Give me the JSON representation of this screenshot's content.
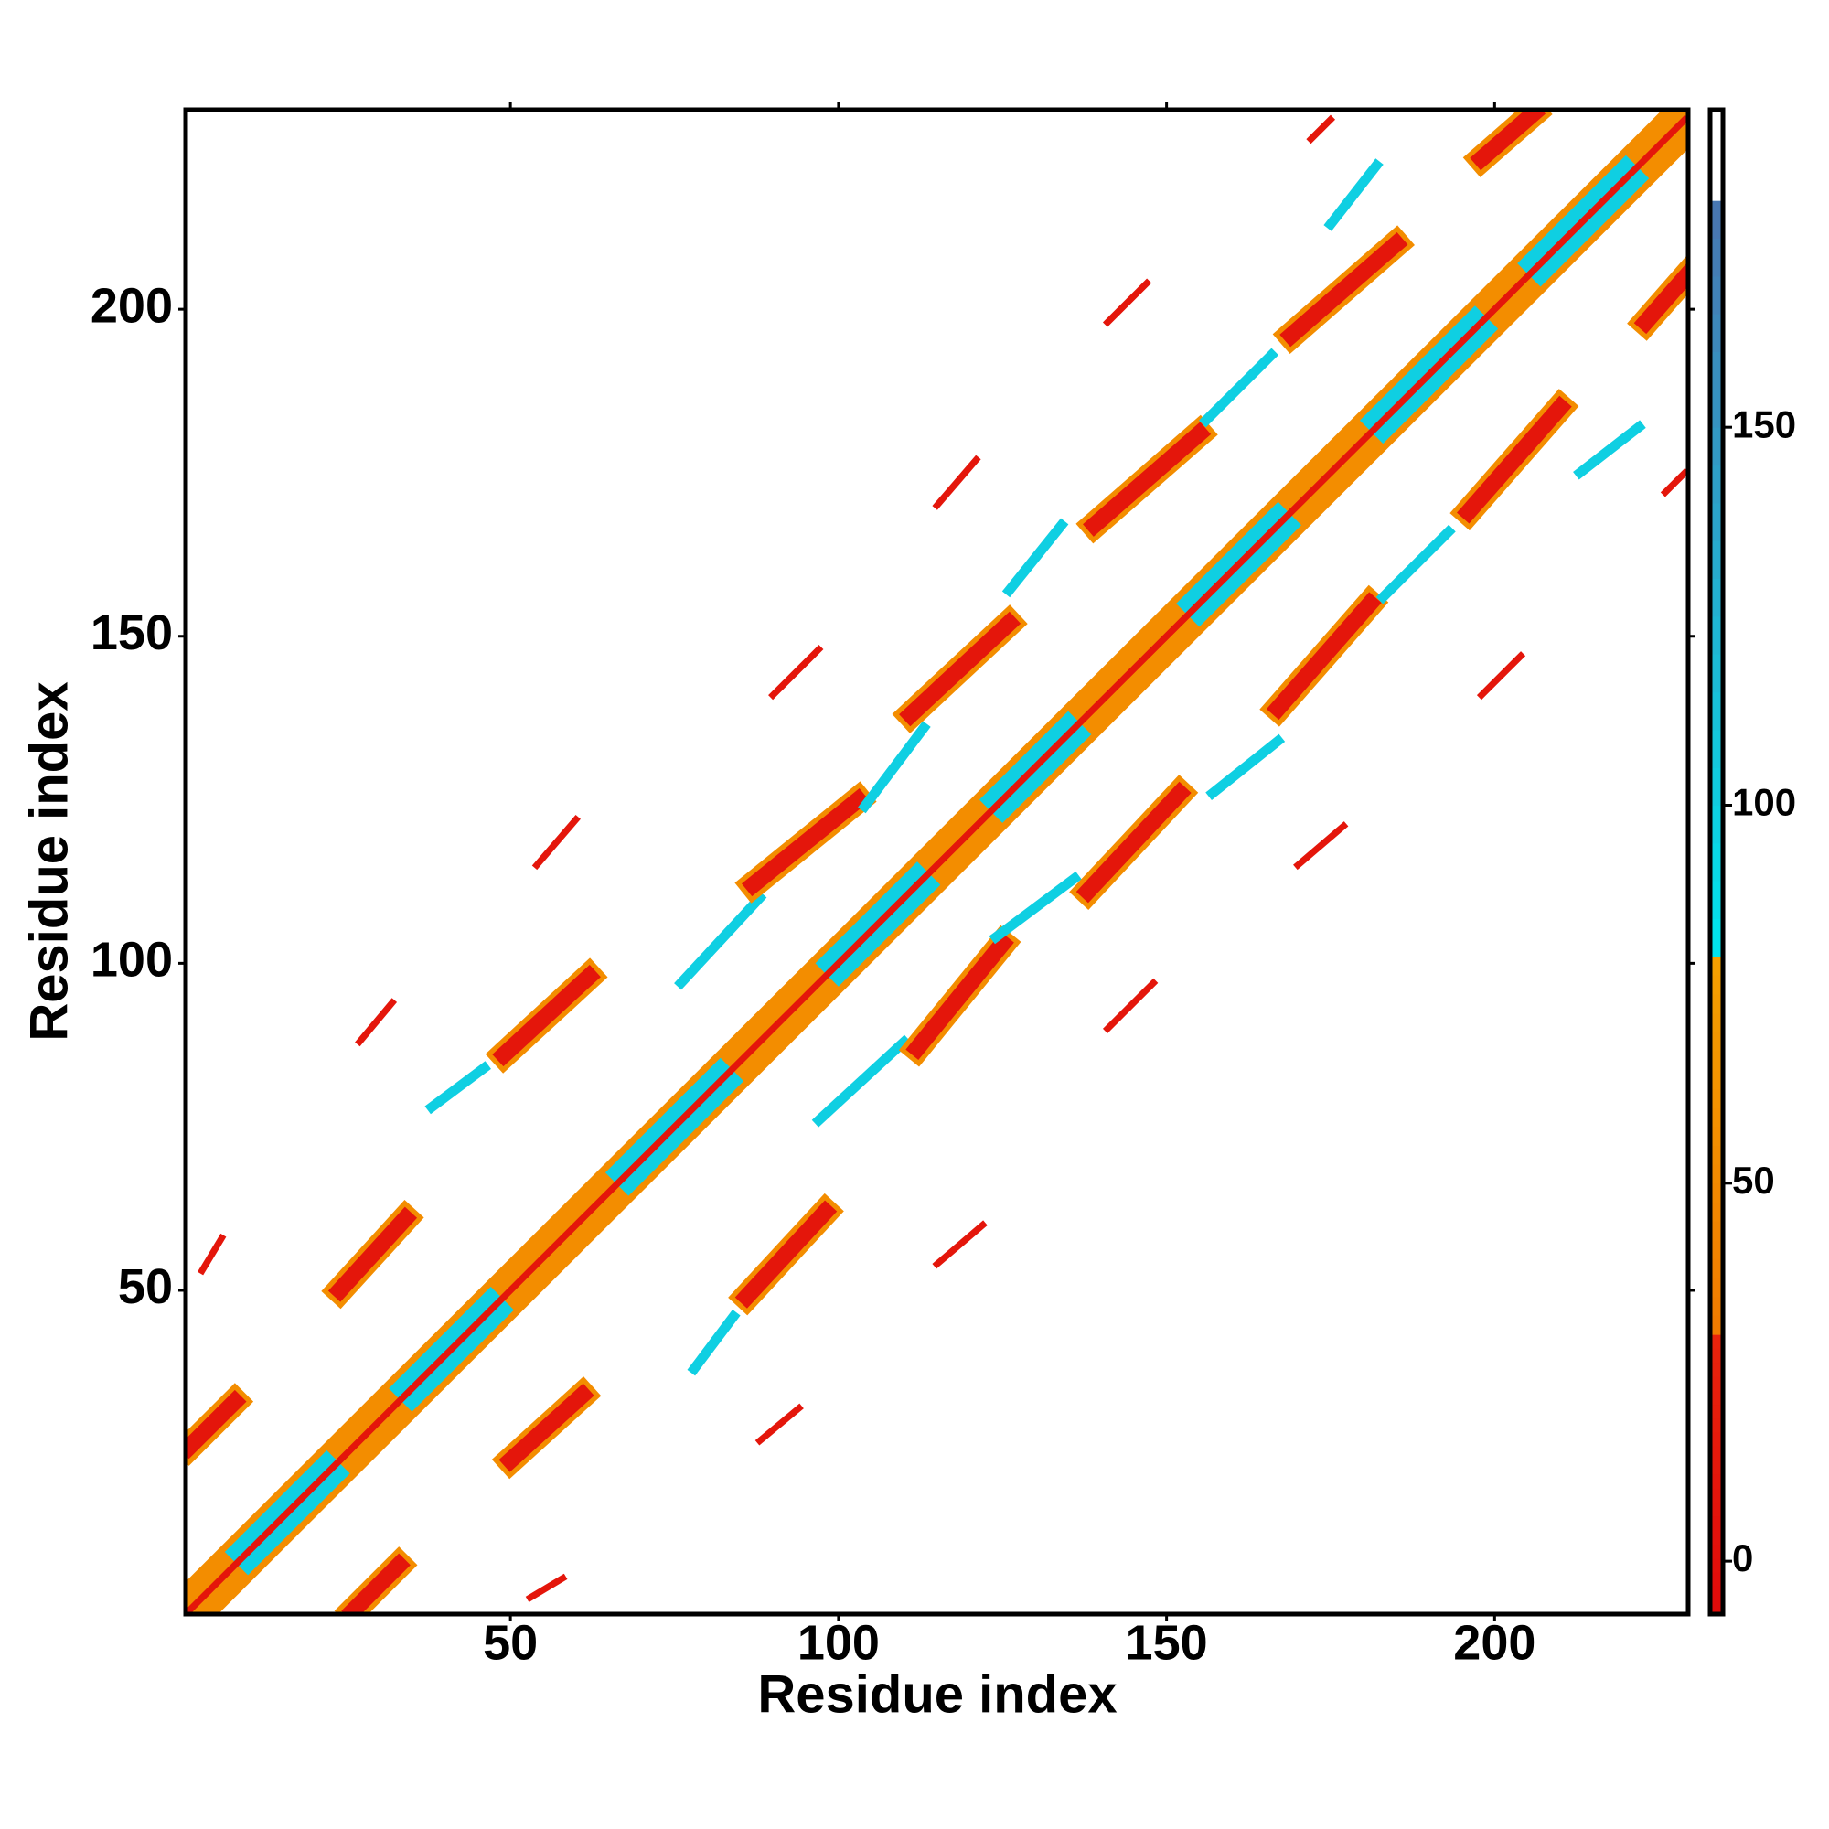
{
  "chart_data": {
    "type": "heatmap",
    "symmetric": true,
    "xlabel": "Residue index",
    "ylabel": "Residue index",
    "xlim": [
      0.5,
      229.5
    ],
    "ylim": [
      0.5,
      230.5
    ],
    "xticks": [
      50,
      100,
      150,
      200
    ],
    "yticks": [
      50,
      100,
      150,
      200
    ],
    "colorbar": {
      "lim": [
        -7,
        192
      ],
      "ticks": [
        0,
        50,
        100,
        150
      ],
      "bands": [
        {
          "from": -7,
          "to": 30,
          "colors": [
            "#e00a0a",
            "#e8240c"
          ]
        },
        {
          "from": 30,
          "to": 80,
          "colors": [
            "#f07a00",
            "#f5a000"
          ]
        },
        {
          "from": 80,
          "to": 180,
          "colors": [
            "#00e6ee",
            "#4a74b0"
          ]
        },
        {
          "from": 180,
          "to": 192,
          "colors": [
            "#ffffff",
            "#ffffff"
          ]
        }
      ]
    },
    "streaks": [
      {
        "x": [
          1,
          229
        ],
        "y": [
          1,
          229
        ],
        "w": 7,
        "value": 55
      },
      {
        "x": [
          10,
          22
        ],
        "y": [
          10,
          22
        ],
        "w": 5,
        "value": 100
      },
      {
        "x": [
          35,
          47
        ],
        "y": [
          35,
          47
        ],
        "w": 5,
        "value": 100
      },
      {
        "x": [
          68,
          82
        ],
        "y": [
          68,
          82
        ],
        "w": 5,
        "value": 100
      },
      {
        "x": [
          100,
          112
        ],
        "y": [
          100,
          112
        ],
        "w": 5,
        "value": 100
      },
      {
        "x": [
          125,
          135
        ],
        "y": [
          125,
          135
        ],
        "w": 5,
        "value": 100
      },
      {
        "x": [
          155,
          167
        ],
        "y": [
          155,
          167
        ],
        "w": 5,
        "value": 100
      },
      {
        "x": [
          183,
          197
        ],
        "y": [
          183,
          197
        ],
        "w": 5,
        "value": 100
      },
      {
        "x": [
          207,
          220
        ],
        "y": [
          207,
          220
        ],
        "w": 5,
        "value": 100
      },
      {
        "x": [
          1,
          229
        ],
        "y": [
          1,
          229
        ],
        "w": 1,
        "value": 10
      },
      {
        "x": [
          1,
          8
        ],
        "y": [
          26,
          33
        ],
        "w": 4,
        "value": 55
      },
      {
        "x": [
          1,
          8
        ],
        "y": [
          26,
          33
        ],
        "w": 2.5,
        "value": 10
      },
      {
        "x": [
          3,
          6
        ],
        "y": [
          53,
          58
        ],
        "w": 1,
        "value": 10
      },
      {
        "x": [
          24,
          34
        ],
        "y": [
          50,
          61
        ],
        "w": 4,
        "value": 55
      },
      {
        "x": [
          24,
          34
        ],
        "y": [
          50,
          61
        ],
        "w": 2.5,
        "value": 10
      },
      {
        "x": [
          27,
          32
        ],
        "y": [
          88,
          94
        ],
        "w": 1,
        "value": 10
      },
      {
        "x": [
          38,
          46
        ],
        "y": [
          78,
          84
        ],
        "w": 1.5,
        "value": 100
      },
      {
        "x": [
          49,
          62
        ],
        "y": [
          86,
          98
        ],
        "w": 4,
        "value": 55
      },
      {
        "x": [
          49,
          62
        ],
        "y": [
          86,
          98
        ],
        "w": 2.5,
        "value": 10
      },
      {
        "x": [
          54,
          60
        ],
        "y": [
          115,
          122
        ],
        "w": 1,
        "value": 10
      },
      {
        "x": [
          76,
          88
        ],
        "y": [
          97,
          110
        ],
        "w": 1.5,
        "value": 100
      },
      {
        "x": [
          87,
          103
        ],
        "y": [
          112,
          125
        ],
        "w": 4,
        "value": 55
      },
      {
        "x": [
          87,
          103
        ],
        "y": [
          112,
          125
        ],
        "w": 2.5,
        "value": 10
      },
      {
        "x": [
          90,
          97
        ],
        "y": [
          141,
          148
        ],
        "w": 1,
        "value": 10
      },
      {
        "x": [
          104,
          113
        ],
        "y": [
          124,
          136
        ],
        "w": 1.5,
        "value": 100
      },
      {
        "x": [
          111,
          126
        ],
        "y": [
          138,
          152
        ],
        "w": 4,
        "value": 55
      },
      {
        "x": [
          111,
          126
        ],
        "y": [
          138,
          152
        ],
        "w": 2.5,
        "value": 10
      },
      {
        "x": [
          115,
          121
        ],
        "y": [
          170,
          177
        ],
        "w": 1,
        "value": 10
      },
      {
        "x": [
          126,
          134
        ],
        "y": [
          157,
          167
        ],
        "w": 1.5,
        "value": 100
      },
      {
        "x": [
          139,
          155
        ],
        "y": [
          167,
          181
        ],
        "w": 4,
        "value": 55
      },
      {
        "x": [
          139,
          155
        ],
        "y": [
          167,
          181
        ],
        "w": 2.5,
        "value": 10
      },
      {
        "x": [
          141,
          147
        ],
        "y": [
          198,
          204
        ],
        "w": 1,
        "value": 10
      },
      {
        "x": [
          156,
          166
        ],
        "y": [
          183,
          193
        ],
        "w": 1.5,
        "value": 100
      },
      {
        "x": [
          169,
          185
        ],
        "y": [
          196,
          210
        ],
        "w": 4,
        "value": 55
      },
      {
        "x": [
          169,
          185
        ],
        "y": [
          196,
          210
        ],
        "w": 2.5,
        "value": 10
      },
      {
        "x": [
          175,
          182
        ],
        "y": [
          213,
          222
        ],
        "w": 1.5,
        "value": 100
      },
      {
        "x": [
          172,
          175
        ],
        "y": [
          226,
          229
        ],
        "w": 1,
        "value": 10
      },
      {
        "x": [
          198,
          206
        ],
        "y": [
          223,
          230
        ],
        "w": 4,
        "value": 55
      },
      {
        "x": [
          198,
          206
        ],
        "y": [
          223,
          230
        ],
        "w": 2.5,
        "value": 10
      }
    ]
  }
}
